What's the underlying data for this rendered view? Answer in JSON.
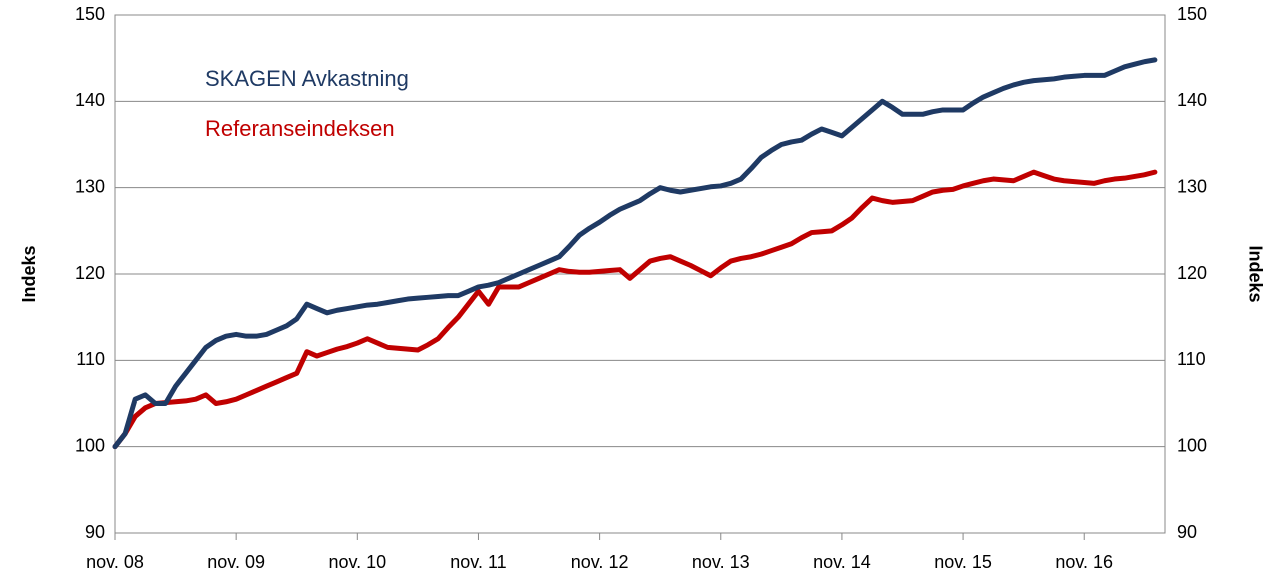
{
  "chart_data": {
    "type": "line",
    "categories": [
      "nov. 08",
      null,
      null,
      null,
      null,
      null,
      null,
      null,
      null,
      null,
      null,
      null,
      "nov. 09",
      null,
      null,
      null,
      null,
      null,
      null,
      null,
      null,
      null,
      null,
      null,
      "nov. 10",
      null,
      null,
      null,
      null,
      null,
      null,
      null,
      null,
      null,
      null,
      null,
      "nov. 11",
      null,
      null,
      null,
      null,
      null,
      null,
      null,
      null,
      null,
      null,
      null,
      "nov. 12",
      null,
      null,
      null,
      null,
      null,
      null,
      null,
      null,
      null,
      null,
      null,
      "nov. 13",
      null,
      null,
      null,
      null,
      null,
      null,
      null,
      null,
      null,
      null,
      null,
      "nov. 14",
      null,
      null,
      null,
      null,
      null,
      null,
      null,
      null,
      null,
      null,
      null,
      "nov. 15",
      null,
      null,
      null,
      null,
      null,
      null,
      null,
      null,
      null,
      null,
      null,
      "nov. 16",
      null,
      null,
      null,
      null,
      null,
      null,
      null
    ],
    "series": [
      {
        "name": "SKAGEN Avkastning",
        "color": "#1f3a64",
        "values": [
          100,
          101.5,
          105.5,
          106,
          105,
          105,
          107,
          108.5,
          110,
          111.5,
          112.3,
          112.8,
          113,
          112.8,
          112.8,
          113,
          113.5,
          114,
          114.8,
          116.5,
          116,
          115.5,
          115.8,
          116,
          116.2,
          116.4,
          116.5,
          116.7,
          116.9,
          117.1,
          117.2,
          117.3,
          117.4,
          117.5,
          117.5,
          118,
          118.5,
          118.7,
          119,
          119.5,
          120,
          120.5,
          121,
          121.5,
          122,
          123.2,
          124.5,
          125.3,
          126,
          126.8,
          127.5,
          128,
          128.5,
          129.3,
          130,
          129.7,
          129.5,
          129.7,
          129.9,
          130.1,
          130.2,
          130.5,
          131,
          132.2,
          133.5,
          134.3,
          135,
          135.3,
          135.5,
          136.2,
          136.8,
          136.4,
          136,
          137,
          138,
          139,
          140,
          139.3,
          138.5,
          138.5,
          138.5,
          138.8,
          139,
          139,
          139,
          139.8,
          140.5,
          141,
          141.5,
          141.9,
          142.2,
          142.4,
          142.5,
          142.6,
          142.8,
          142.9,
          143,
          143,
          143,
          143.5,
          144,
          144.3,
          144.6,
          144.8
        ]
      },
      {
        "name": "Referanseindeksen",
        "color": "#c00000",
        "values": [
          100,
          101.5,
          103.5,
          104.5,
          105,
          105.1,
          105.2,
          105.3,
          105.5,
          106,
          105,
          105.2,
          105.5,
          106,
          106.5,
          107,
          107.5,
          108,
          108.5,
          111,
          110.5,
          110.9,
          111.3,
          111.6,
          112,
          112.5,
          112,
          111.5,
          111.4,
          111.3,
          111.2,
          111.8,
          112.5,
          113.8,
          115,
          116.5,
          118,
          116.5,
          118.5,
          118.5,
          118.5,
          119,
          119.5,
          120,
          120.5,
          120.3,
          120.2,
          120.2,
          120.3,
          120.4,
          120.5,
          119.5,
          120.5,
          121.5,
          121.8,
          122,
          121.5,
          121,
          120.4,
          119.8,
          120.7,
          121.5,
          121.8,
          122,
          122.3,
          122.7,
          123.1,
          123.5,
          124.2,
          124.8,
          124.9,
          125,
          125.7,
          126.5,
          127.7,
          128.8,
          128.5,
          128.3,
          128.4,
          128.5,
          129,
          129.5,
          129.7,
          129.8,
          130.2,
          130.5,
          130.8,
          131,
          130.9,
          130.8,
          131.3,
          131.8,
          131.4,
          131,
          130.8,
          130.7,
          130.6,
          130.5,
          130.8,
          131,
          131.1,
          131.3,
          131.5,
          131.8
        ]
      }
    ],
    "ylabel": "Indeks",
    "y2label": "Indeks",
    "ylim": [
      90,
      150
    ],
    "yticks": [
      90,
      100,
      110,
      120,
      130,
      140,
      150
    ],
    "y2lim": [
      90,
      150
    ],
    "y2ticks": [
      90,
      100,
      110,
      120,
      130,
      140,
      150
    ],
    "grid": true
  }
}
